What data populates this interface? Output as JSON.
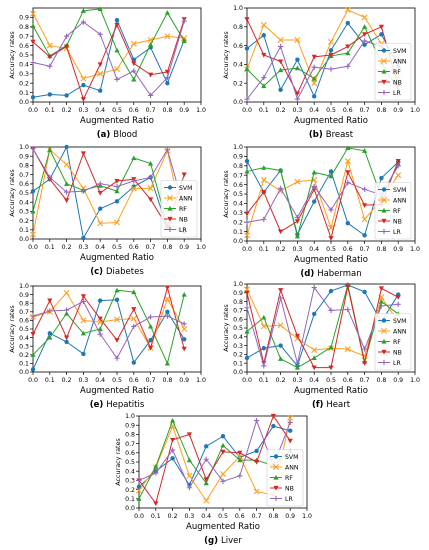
{
  "figure": {
    "captions": [
      {
        "letter": "(a)",
        "name": "Blood"
      },
      {
        "letter": "(b)",
        "name": "Breast"
      },
      {
        "letter": "(c)",
        "name": "Diabetes"
      },
      {
        "letter": "(d)",
        "name": "Haberman"
      },
      {
        "letter": "(e)",
        "name": "Hepatitis"
      },
      {
        "letter": "(f)",
        "name": "Heart"
      },
      {
        "letter": "(g)",
        "name": "Liver"
      }
    ]
  },
  "chart_data": [
    {
      "type": "line",
      "title": "",
      "caption": "(a) Blood",
      "xlabel": "Augmented Ratio",
      "ylabel": "Accuracy rates",
      "xlim": [
        0.0,
        1.0
      ],
      "ylim": [
        0.0,
        1.0
      ],
      "xticks": [
        "0.0",
        "0.1",
        "0.2",
        "0.3",
        "0.4",
        "0.5",
        "0.6",
        "0.7",
        "0.8",
        "0.9",
        "1.0"
      ],
      "yticks": [
        "0.0",
        "0.1",
        "0.2",
        "0.3",
        "0.4",
        "0.5",
        "0.6",
        "0.7",
        "0.8",
        "0.9"
      ],
      "legend_position": "none",
      "x": [
        0.0,
        0.1,
        0.2,
        0.3,
        0.4,
        0.5,
        0.6,
        0.7,
        0.8,
        0.9
      ],
      "series": [
        {
          "name": "SVM",
          "values": [
            0.05,
            0.08,
            0.07,
            0.18,
            0.12,
            0.87,
            0.45,
            0.58,
            0.2,
            0.66
          ]
        },
        {
          "name": "ANN",
          "values": [
            0.94,
            0.6,
            0.57,
            0.25,
            0.3,
            0.35,
            0.62,
            0.66,
            0.7,
            0.68
          ]
        },
        {
          "name": "RF",
          "values": [
            0.81,
            0.49,
            0.6,
            0.97,
            0.99,
            0.55,
            0.24,
            0.61,
            0.95,
            0.65
          ]
        },
        {
          "name": "NB",
          "values": [
            0.64,
            0.48,
            0.59,
            0.03,
            0.4,
            0.82,
            0.41,
            0.29,
            0.32,
            0.88
          ]
        },
        {
          "name": "LR",
          "values": [
            0.42,
            0.38,
            0.7,
            0.85,
            0.72,
            0.24,
            0.33,
            0.07,
            0.26,
            0.86
          ]
        }
      ]
    },
    {
      "type": "line",
      "title": "",
      "caption": "(b) Breast",
      "xlabel": "Augmented Ratio",
      "ylabel": "Accuracy rates",
      "xlim": [
        0.0,
        1.0
      ],
      "ylim": [
        0.0,
        1.0
      ],
      "xticks": [
        "0.0",
        "0.1",
        "0.2",
        "0.3",
        "0.4",
        "0.5",
        "0.6",
        "0.7",
        "0.8",
        "0.9",
        "1.0"
      ],
      "yticks": [
        "0.0",
        "0.2",
        "0.4",
        "0.6",
        "0.8",
        "1.0"
      ],
      "legend_position": "right",
      "x": [
        0.0,
        0.1,
        0.2,
        0.3,
        0.4,
        0.5,
        0.6,
        0.7,
        0.8,
        0.9
      ],
      "series": [
        {
          "name": "SVM",
          "values": [
            0.57,
            0.71,
            0.13,
            0.45,
            0.06,
            0.55,
            0.84,
            0.61,
            0.72,
            0.38
          ]
        },
        {
          "name": "ANN",
          "values": [
            0.35,
            0.82,
            0.66,
            0.66,
            0.2,
            0.64,
            0.98,
            0.9,
            0.62,
            0.27
          ]
        },
        {
          "name": "RF",
          "values": [
            0.35,
            0.17,
            0.34,
            0.36,
            0.25,
            0.49,
            0.52,
            0.8,
            0.42,
            0.13
          ]
        },
        {
          "name": "NB",
          "values": [
            0.88,
            0.5,
            0.43,
            0.09,
            0.48,
            0.5,
            0.59,
            0.72,
            0.8,
            0.17
          ]
        },
        {
          "name": "LR",
          "values": [
            0.03,
            0.26,
            0.59,
            0.03,
            0.37,
            0.35,
            0.38,
            0.65,
            0.59,
            0.45
          ]
        }
      ]
    },
    {
      "type": "line",
      "title": "",
      "caption": "(c) Diabetes",
      "xlabel": "Augmented Ratio",
      "ylabel": "Accuracy rates",
      "xlim": [
        0.0,
        1.0
      ],
      "ylim": [
        0.0,
        1.0
      ],
      "xticks": [
        "0.0",
        "0.1",
        "0.2",
        "0.3",
        "0.4",
        "0.5",
        "0.6",
        "0.7",
        "0.8",
        "0.9",
        "1.0"
      ],
      "yticks": [
        "0.0",
        "0.1",
        "0.2",
        "0.3",
        "0.4",
        "0.5",
        "0.6",
        "0.7",
        "0.8",
        "0.9",
        "1.0"
      ],
      "legend_position": "right",
      "x": [
        0.0,
        0.1,
        0.2,
        0.3,
        0.4,
        0.5,
        0.6,
        0.7,
        0.8,
        0.9
      ],
      "series": [
        {
          "name": "SVM",
          "values": [
            0.52,
            0.65,
            1.0,
            0.01,
            0.33,
            0.41,
            0.57,
            0.67,
            0.12,
            0.08
          ]
        },
        {
          "name": "ANN",
          "values": [
            0.05,
            0.97,
            0.81,
            0.55,
            0.17,
            0.18,
            0.55,
            0.55,
            0.96,
            0.1
          ]
        },
        {
          "name": "RF",
          "values": [
            0.3,
            0.97,
            0.6,
            0.53,
            0.58,
            0.52,
            0.88,
            0.82,
            0.15,
            0.1
          ]
        },
        {
          "name": "NB",
          "values": [
            0.98,
            0.65,
            0.42,
            0.93,
            0.5,
            0.63,
            0.65,
            0.43,
            0.13,
            0.7
          ]
        },
        {
          "name": "LR",
          "values": [
            0.98,
            0.67,
            0.51,
            0.52,
            0.6,
            0.57,
            0.63,
            0.67,
            0.97,
            0.33
          ]
        }
      ]
    },
    {
      "type": "line",
      "title": "",
      "caption": "(d) Haberman",
      "xlabel": "Augmented Ratio",
      "ylabel": "Accuracy rates",
      "xlim": [
        0.0,
        1.0
      ],
      "ylim": [
        0.0,
        1.0
      ],
      "xticks": [
        "0.0",
        "0.1",
        "0.2",
        "0.3",
        "0.4",
        "0.5",
        "0.6",
        "0.7",
        "0.8",
        "0.9",
        "1.0"
      ],
      "yticks": [
        "0.0",
        "0.1",
        "0.2",
        "0.3",
        "0.4",
        "0.5",
        "0.6",
        "0.7",
        "0.8",
        "0.9",
        "1.0"
      ],
      "legend_position": "right",
      "x": [
        0.0,
        0.1,
        0.2,
        0.3,
        0.4,
        0.5,
        0.6,
        0.7,
        0.8,
        0.9
      ],
      "series": [
        {
          "name": "SVM",
          "values": [
            0.85,
            0.52,
            0.75,
            0.07,
            0.42,
            0.74,
            0.19,
            0.06,
            0.67,
            0.84
          ]
        },
        {
          "name": "ANN",
          "values": [
            0.06,
            0.65,
            0.53,
            0.63,
            0.65,
            0.14,
            0.85,
            0.23,
            0.44,
            0.7
          ]
        },
        {
          "name": "RF",
          "values": [
            0.74,
            0.78,
            0.75,
            0.05,
            0.73,
            0.69,
            0.99,
            0.96,
            0.47,
            0.82
          ]
        },
        {
          "name": "NB",
          "values": [
            0.29,
            0.52,
            0.1,
            0.21,
            0.55,
            0.03,
            0.73,
            0.38,
            0.39,
            0.85
          ]
        },
        {
          "name": "LR",
          "values": [
            0.2,
            0.23,
            0.56,
            0.25,
            0.58,
            0.33,
            0.62,
            0.55,
            0.49,
            0.8
          ]
        }
      ]
    },
    {
      "type": "line",
      "title": "",
      "caption": "(e) Hepatitis",
      "xlabel": "Augmented Ratio",
      "ylabel": "Accuracy rates",
      "xlim": [
        0.0,
        1.0
      ],
      "ylim": [
        0.0,
        1.0
      ],
      "xticks": [
        "0.0",
        "0.1",
        "0.2",
        "0.3",
        "0.4",
        "0.5",
        "0.6",
        "0.7",
        "0.8",
        "0.9",
        "1.0"
      ],
      "yticks": [
        "0.0",
        "0.1",
        "0.2",
        "0.3",
        "0.4",
        "0.5",
        "0.6",
        "0.7",
        "0.8",
        "0.9",
        "1.0"
      ],
      "legend_position": "none",
      "x": [
        0.0,
        0.1,
        0.2,
        0.3,
        0.4,
        0.5,
        0.6,
        0.7,
        0.8,
        0.9
      ],
      "series": [
        {
          "name": "SVM",
          "values": [
            0.03,
            0.45,
            0.35,
            0.21,
            0.83,
            0.84,
            0.11,
            0.37,
            0.7,
            0.38
          ]
        },
        {
          "name": "ANN",
          "values": [
            0.64,
            0.7,
            0.92,
            0.6,
            0.58,
            0.61,
            0.62,
            0.28,
            0.85,
            0.5
          ]
        },
        {
          "name": "RF",
          "values": [
            0.2,
            0.4,
            0.68,
            0.45,
            0.5,
            0.95,
            0.93,
            0.53,
            0.1,
            0.9
          ]
        },
        {
          "name": "NB",
          "values": [
            0.44,
            0.83,
            0.4,
            0.88,
            0.62,
            0.37,
            0.73,
            0.28,
            0.98,
            0.27
          ]
        },
        {
          "name": "LR",
          "values": [
            0.65,
            0.71,
            0.72,
            0.82,
            0.44,
            0.16,
            0.53,
            0.64,
            0.65,
            0.56
          ]
        }
      ]
    },
    {
      "type": "line",
      "title": "",
      "caption": "(f) Heart",
      "xlabel": "Augmented Ratio",
      "ylabel": "Accuracy rates",
      "xlim": [
        0.0,
        1.0
      ],
      "ylim": [
        0.0,
        1.0
      ],
      "xticks": [
        "0.0",
        "0.1",
        "0.2",
        "0.3",
        "0.4",
        "0.5",
        "0.6",
        "0.7",
        "0.8",
        "0.9",
        "1.0"
      ],
      "yticks": [
        "0.0",
        "0.1",
        "0.2",
        "0.3",
        "0.4",
        "0.5",
        "0.6",
        "0.7",
        "0.8",
        "0.9",
        "1.0"
      ],
      "legend_position": "right",
      "x": [
        0.0,
        0.1,
        0.2,
        0.3,
        0.4,
        0.5,
        0.6,
        0.7,
        0.8,
        0.9
      ],
      "series": [
        {
          "name": "SVM",
          "values": [
            0.16,
            0.27,
            0.3,
            0.07,
            0.66,
            0.92,
            0.99,
            0.91,
            0.57,
            0.88
          ]
        },
        {
          "name": "ANN",
          "values": [
            0.94,
            0.52,
            0.53,
            0.38,
            0.25,
            0.27,
            0.26,
            0.18,
            0.85,
            0.57
          ]
        },
        {
          "name": "RF",
          "values": [
            0.46,
            0.62,
            0.15,
            0.05,
            0.16,
            0.28,
            0.99,
            0.12,
            0.8,
            0.66
          ]
        },
        {
          "name": "NB",
          "values": [
            0.9,
            0.1,
            0.93,
            0.41,
            0.05,
            0.05,
            0.97,
            0.1,
            0.95,
            0.85
          ]
        },
        {
          "name": "LR",
          "values": [
            0.73,
            0.07,
            0.84,
            0.1,
            0.96,
            0.7,
            0.71,
            0.26,
            0.75,
            0.77
          ]
        }
      ]
    },
    {
      "type": "line",
      "title": "",
      "caption": "(g) Liver",
      "xlabel": "Augmented Ratio",
      "ylabel": "Accuracy rates",
      "xlim": [
        0.0,
        1.0
      ],
      "ylim": [
        0.0,
        1.0
      ],
      "xticks": [
        "0.0",
        "0.1",
        "0.2",
        "0.3",
        "0.4",
        "0.5",
        "0.6",
        "0.7",
        "0.8",
        "0.9",
        "1.0"
      ],
      "yticks": [
        "0.0",
        "0.1",
        "0.2",
        "0.3",
        "0.4",
        "0.5",
        "0.6",
        "0.7",
        "0.8",
        "0.9",
        "1.0"
      ],
      "legend_position": "right",
      "x": [
        0.0,
        0.1,
        0.2,
        0.3,
        0.4,
        0.5,
        0.6,
        0.7,
        0.8,
        0.9
      ],
      "series": [
        {
          "name": "SVM",
          "values": [
            0.23,
            0.4,
            0.54,
            0.25,
            0.67,
            0.78,
            0.55,
            0.62,
            0.89,
            0.84
          ]
        },
        {
          "name": "ANN",
          "values": [
            0.19,
            0.44,
            0.89,
            0.35,
            0.08,
            0.37,
            0.56,
            0.18,
            0.14,
            0.98
          ]
        },
        {
          "name": "RF",
          "values": [
            0.1,
            0.45,
            0.95,
            0.52,
            0.27,
            0.68,
            0.52,
            0.52,
            0.46,
            0.62
          ]
        },
        {
          "name": "NB",
          "values": [
            0.3,
            0.05,
            0.74,
            0.8,
            0.31,
            0.61,
            0.6,
            0.5,
            1.0,
            0.73
          ]
        },
        {
          "name": "LR",
          "values": [
            0.3,
            0.38,
            0.63,
            0.22,
            0.53,
            0.29,
            0.35,
            0.95,
            0.46,
            0.93
          ]
        }
      ]
    }
  ],
  "colors": {
    "SVM": "#1f77b4",
    "ANN": "#ff9f1c",
    "RF": "#2ca02c",
    "NB": "#d62728",
    "LR": "#9467bd"
  },
  "markers": {
    "SVM": "circle",
    "ANN": "x",
    "RF": "triangle-up",
    "NB": "triangle-down",
    "LR": "plus"
  }
}
